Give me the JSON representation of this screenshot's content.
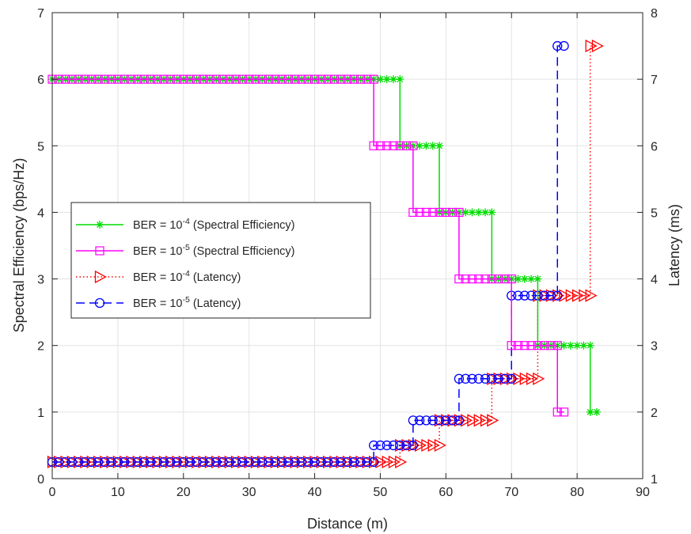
{
  "chart_data": {
    "type": "line",
    "xlabel": "Distance (m)",
    "ylabel": "Spectral Efficiency (bps/Hz)",
    "ylabel_right": "Latency (ms)",
    "xlim": [
      0,
      90
    ],
    "ylim": [
      0,
      7
    ],
    "ylim_right": [
      1,
      8
    ],
    "xticks": [
      0,
      10,
      20,
      30,
      40,
      50,
      60,
      70,
      80,
      90
    ],
    "yticks": [
      0,
      1,
      2,
      3,
      4,
      5,
      6,
      7
    ],
    "yticks_right": [
      1,
      2,
      3,
      4,
      5,
      6,
      7,
      8
    ],
    "grid": true,
    "legend_position": "middle-left",
    "series": [
      {
        "label_prefix": "BER = 10",
        "label_exp": "-4",
        "label_suffix": " (Spectral Efficiency)",
        "axis": "left",
        "color": "#00dd00",
        "line_style": "solid",
        "marker": "asterisk",
        "segments": [
          {
            "from": 0,
            "to": 53,
            "y": 6
          },
          {
            "from": 53,
            "to": 59,
            "y": 5
          },
          {
            "from": 59,
            "to": 67,
            "y": 4
          },
          {
            "from": 67,
            "to": 74,
            "y": 3
          },
          {
            "from": 74,
            "to": 82,
            "y": 2
          },
          {
            "from": 82,
            "to": 83,
            "y": 1
          }
        ]
      },
      {
        "label_prefix": "BER = 10",
        "label_exp": "-5",
        "label_suffix": " (Spectral Efficiency)",
        "axis": "left",
        "color": "#ff00ff",
        "line_style": "solid",
        "marker": "square",
        "segments": [
          {
            "from": 0,
            "to": 49,
            "y": 6
          },
          {
            "from": 49,
            "to": 55,
            "y": 5
          },
          {
            "from": 55,
            "to": 62,
            "y": 4
          },
          {
            "from": 62,
            "to": 70,
            "y": 3
          },
          {
            "from": 70,
            "to": 77,
            "y": 2
          },
          {
            "from": 77,
            "to": 78,
            "y": 1
          }
        ]
      },
      {
        "label_prefix": "BER = 10",
        "label_exp": "-4",
        "label_suffix": " (Latency)",
        "axis": "right",
        "color": "#ff0000",
        "line_style": "dotted",
        "marker": "triangle-right",
        "segments": [
          {
            "from": 0,
            "to": 53,
            "y": 1.25
          },
          {
            "from": 53,
            "to": 59,
            "y": 1.5
          },
          {
            "from": 59,
            "to": 67,
            "y": 1.875
          },
          {
            "from": 67,
            "to": 74,
            "y": 2.5
          },
          {
            "from": 74,
            "to": 82,
            "y": 3.75
          },
          {
            "from": 82,
            "to": 83,
            "y": 7.5
          }
        ]
      },
      {
        "label_prefix": "BER = 10",
        "label_exp": "-5",
        "label_suffix": " (Latency)",
        "axis": "right",
        "color": "#0000ff",
        "line_style": "dashed",
        "marker": "circle",
        "segments": [
          {
            "from": 0,
            "to": 49,
            "y": 1.25
          },
          {
            "from": 49,
            "to": 55,
            "y": 1.5
          },
          {
            "from": 55,
            "to": 62,
            "y": 1.875
          },
          {
            "from": 62,
            "to": 70,
            "y": 2.5
          },
          {
            "from": 70,
            "to": 77,
            "y": 3.75
          },
          {
            "from": 77,
            "to": 78,
            "y": 7.5
          }
        ]
      }
    ]
  }
}
